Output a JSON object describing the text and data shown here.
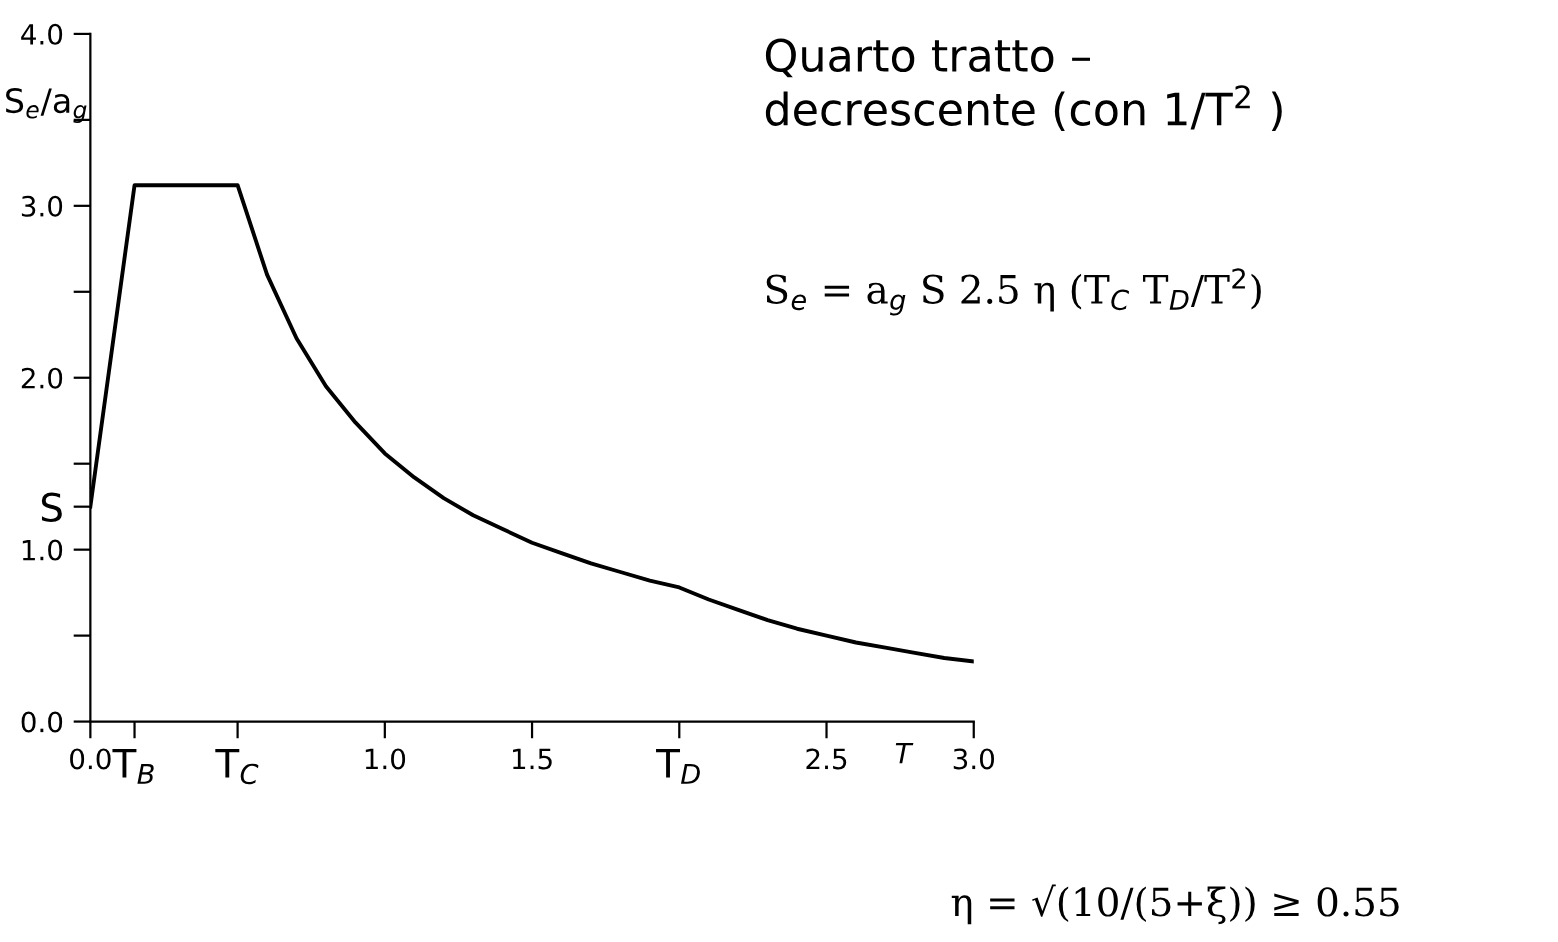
{
  "chart_data": {
    "type": "line",
    "title": "Quarto tratto –\ndecrescente (con 1/T$^{2}$ )",
    "ylabel": "S$_{e}$/a$_{g}$",
    "xlabel": "T",
    "x": [
      0.0,
      0.15,
      0.5,
      0.6,
      0.7,
      0.8,
      0.9,
      1.0,
      1.1,
      1.2,
      1.3,
      1.4,
      1.5,
      1.6,
      1.7,
      1.8,
      1.9,
      2.0,
      2.1,
      2.2,
      2.3,
      2.4,
      2.5,
      2.6,
      2.7,
      2.8,
      2.9,
      3.0
    ],
    "series": [
      {
        "color": "#000000",
        "values": [
          1.25,
          3.12,
          3.12,
          2.6,
          2.23,
          1.95,
          1.74,
          1.56,
          1.42,
          1.3,
          1.2,
          1.12,
          1.04,
          0.98,
          0.92,
          0.87,
          0.82,
          0.78,
          0.71,
          0.65,
          0.59,
          0.54,
          0.5,
          0.46,
          0.43,
          0.4,
          0.37,
          0.35
        ]
      }
    ],
    "xlim": [
      0.0,
      3.0
    ],
    "ylim": [
      0.0,
      4.0
    ],
    "xticks": [
      {
        "value": 0.0,
        "label": "0.0"
      },
      {
        "value": 0.15,
        "label": "T$_{B}$"
      },
      {
        "value": 0.5,
        "label": "T$_{C}$"
      },
      {
        "value": 1.0,
        "label": "1.0"
      },
      {
        "value": 1.5,
        "label": "1.5"
      },
      {
        "value": 2.0,
        "label": "T$_{D}$"
      },
      {
        "value": 2.5,
        "label": "2.5"
      },
      {
        "value": 3.0,
        "label": "3.0"
      }
    ],
    "yticks": [
      {
        "value": 0.0,
        "label": "0.0"
      },
      {
        "value": 0.5,
        "label": null
      },
      {
        "value": 1.0,
        "label": "1.0"
      },
      {
        "value": 1.25,
        "label": "S"
      },
      {
        "value": 1.5,
        "label": null
      },
      {
        "value": 2.0,
        "label": "2.0"
      },
      {
        "value": 2.5,
        "label": null
      },
      {
        "value": 3.0,
        "label": "3.0"
      },
      {
        "value": 3.5,
        "label": null
      },
      {
        "value": 4.0,
        "label": "4.0"
      }
    ],
    "annotations": [
      "S$_{e}$ = a$_{g}$ S 2.5 η (T$_{C}$ T$_{D}$/T$^{2}$)",
      "η = √(10/(5+ξ)) ≥ 0.55"
    ],
    "grid": false,
    "legend": false,
    "marker": "none",
    "line_style": "solid"
  }
}
